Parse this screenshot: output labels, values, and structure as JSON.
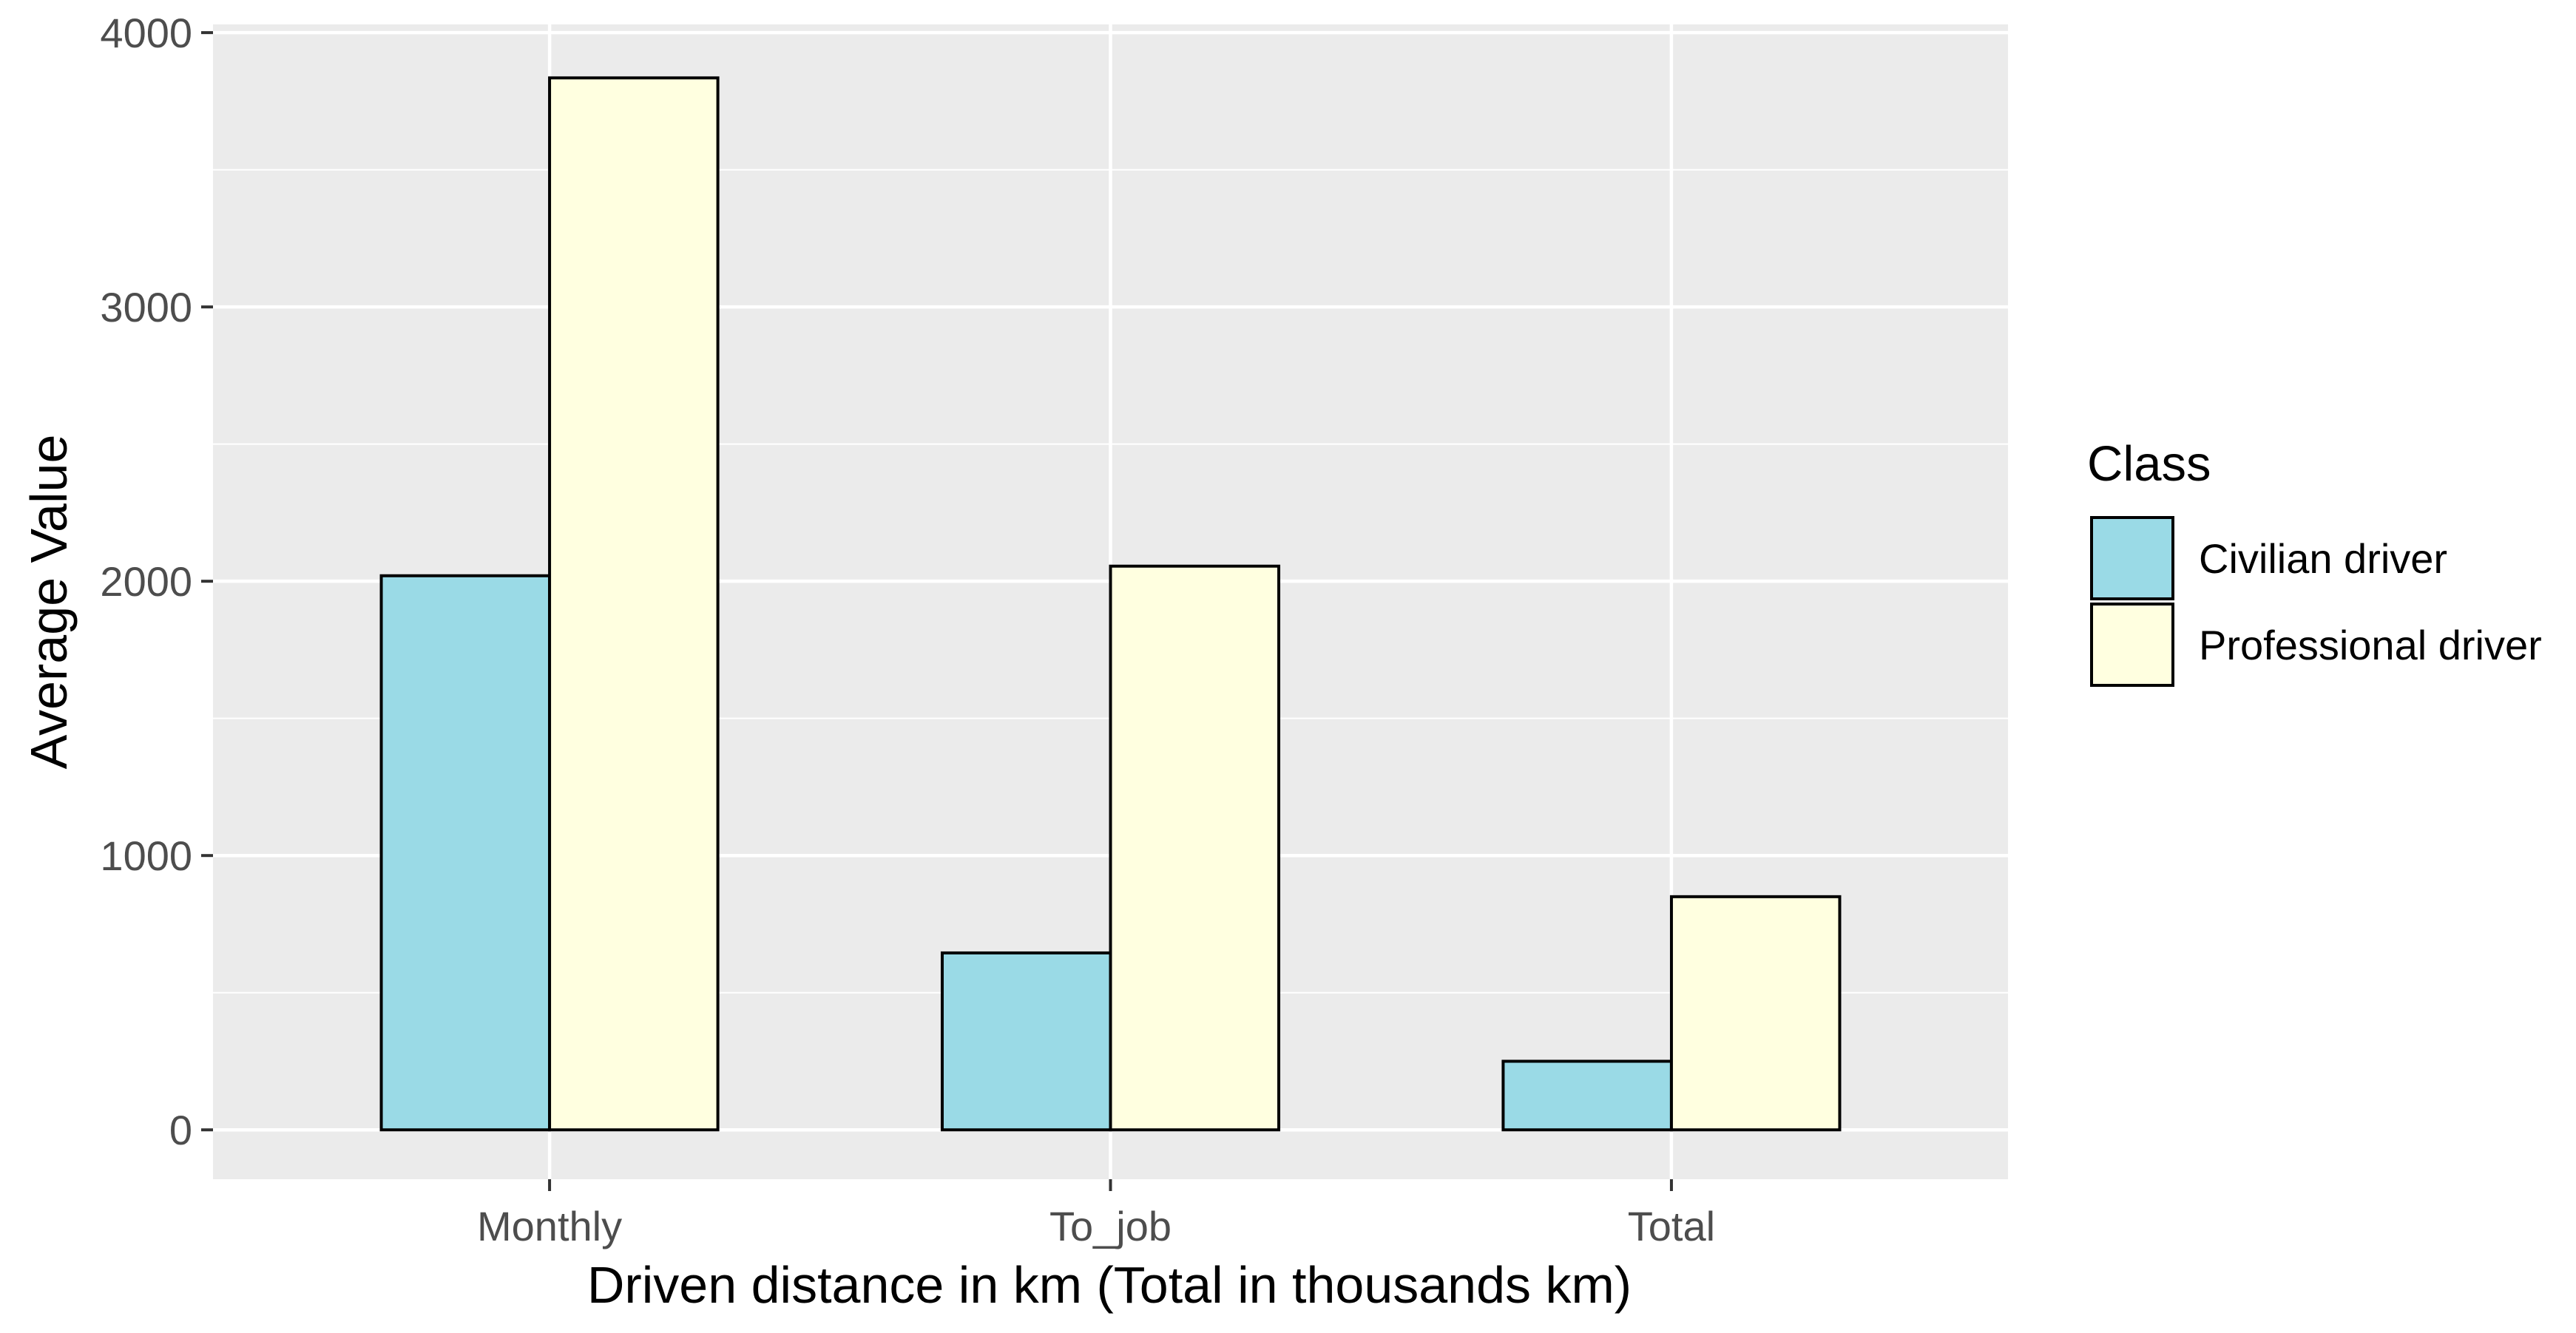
{
  "chart_data": {
    "type": "bar",
    "title": "",
    "xlabel": "Driven distance in km (Total in thousands km)",
    "ylabel": "Average Value",
    "categories": [
      "Monthly",
      "To_job",
      "Total"
    ],
    "series": [
      {
        "name": "Civilian driver",
        "values": [
          2020,
          645,
          250
        ],
        "color": "#9ADAE6"
      },
      {
        "name": "Professional driver",
        "values": [
          3835,
          2055,
          850
        ],
        "color": "#FFFFE0"
      }
    ],
    "ylim": [
      -180,
      4030
    ],
    "yticks": [
      0,
      1000,
      2000,
      3000,
      4000
    ],
    "yticklabels": [
      "0",
      "1000",
      "2000",
      "3000",
      "4000"
    ],
    "grid": true,
    "legend": {
      "title": "Class",
      "position": "right"
    },
    "colors": {
      "panel": "#EBEBEB",
      "grid": "#FFFFFF",
      "bar_outline": "#000000",
      "tick_text": "#4D4D4D",
      "axis_title": "#000000"
    }
  }
}
